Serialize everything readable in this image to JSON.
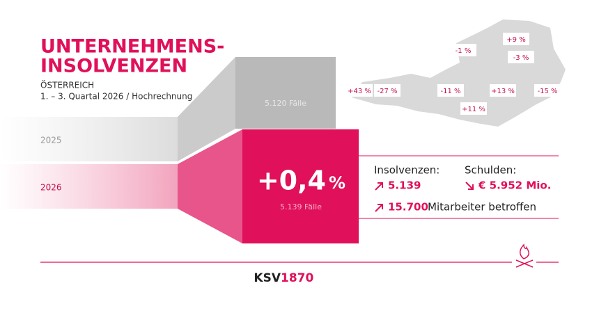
{
  "header": {
    "title_lines": [
      "UNTERNEHMENS-",
      "INSOLVENZEN"
    ],
    "region": "ÖSTERREICH",
    "period": "1. – 3. Quartal 2026 / Hochrechnung"
  },
  "comparison": {
    "previous": {
      "year": "2025",
      "cases": "5.120 Fälle"
    },
    "current": {
      "year": "2026",
      "cases": "5.139 Fälle",
      "change": "+0,4",
      "change_unit": "%"
    }
  },
  "stats": {
    "insolvencies_label": "Insolvenzen:",
    "insolvencies_value": "5.139",
    "debts_label": "Schulden:",
    "debts_value": "€ 5.952 Mio.",
    "employees_value": "15.700",
    "employees_text": "Mitarbeiter betroffen"
  },
  "map": {
    "regions": [
      "+9 %",
      "-1 %",
      "-3 %",
      "+43 %",
      "-27 %",
      "-11 %",
      "+13 %",
      "-15 %",
      "+11 %"
    ]
  },
  "footer": {
    "brand_letters": "KSV",
    "brand_digits": "1870"
  }
}
